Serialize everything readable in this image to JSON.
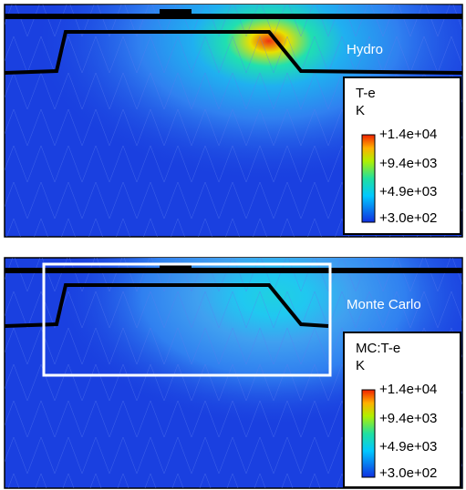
{
  "panels": [
    {
      "label": "Hydro",
      "quantity": "T-e",
      "unit": "K",
      "colorbar_ticks": [
        "+1.4e+04",
        "+9.4e+03",
        "+4.9e+03",
        "+3.0e+02"
      ]
    },
    {
      "label": "Monte Carlo",
      "quantity": "MC:T-e",
      "unit": "K",
      "colorbar_ticks": [
        "+1.4e+04",
        "+9.4e+03",
        "+4.9e+03",
        "+3.0e+02"
      ]
    }
  ]
}
